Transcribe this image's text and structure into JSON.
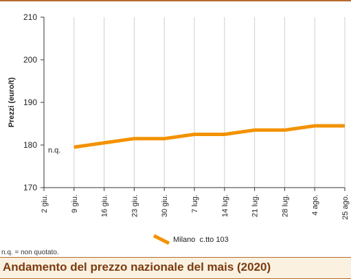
{
  "chart_data": {
    "type": "line",
    "title": "Andamento del prezzo nazionale del mais (2020)",
    "ylabel": "Prezzi (euro/t)",
    "xlabel": "",
    "ylim": [
      170,
      210
    ],
    "yticks": [
      170,
      180,
      190,
      200,
      210
    ],
    "grid": "vertical",
    "legend_position": "bottom-center",
    "categories": [
      "2 giu.",
      "9 giu.",
      "16 giu.",
      "23 giu.",
      "30 giu.",
      "7 lug.",
      "14 lug.",
      "21 lug.",
      "28 lug.",
      "4 ago.",
      "25 ago."
    ],
    "series": [
      {
        "name": "Milano  c.tto 103",
        "color": "#f39200",
        "values": [
          null,
          179.5,
          180.5,
          181.5,
          181.5,
          182.5,
          182.5,
          183.5,
          183.5,
          184.5,
          184.5
        ]
      }
    ],
    "annotations": [
      {
        "text": "n.q.",
        "category": "2 giu.",
        "y": 179.5
      }
    ]
  },
  "footnote": "n.q. = non quotato."
}
